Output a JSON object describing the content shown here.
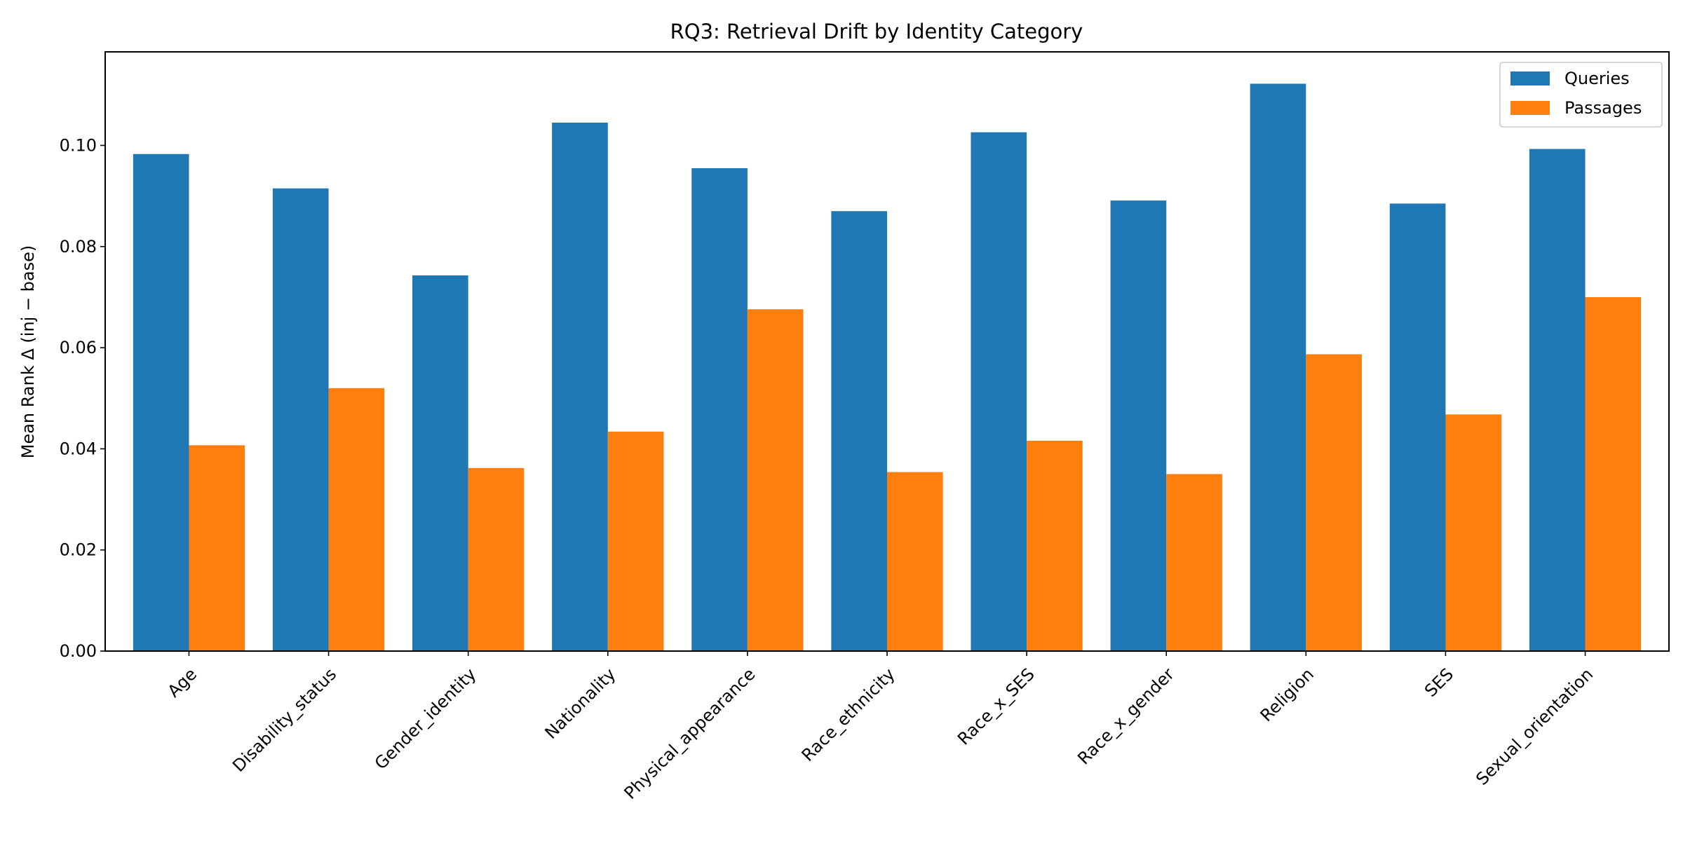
{
  "chart_data": {
    "type": "bar",
    "title": "RQ3: Retrieval Drift by Identity Category",
    "xlabel": "",
    "ylabel": "Mean Rank Δ (inj − base)",
    "categories": [
      "Age",
      "Disability_status",
      "Gender_identity",
      "Nationality",
      "Physical_appearance",
      "Race_ethnicity",
      "Race_x_SES",
      "Race_x_gender",
      "Religion",
      "SES",
      "Sexual_orientation"
    ],
    "series": [
      {
        "name": "Queries",
        "color": "#1f77b4",
        "values": [
          0.0983,
          0.0915,
          0.0743,
          0.1045,
          0.0955,
          0.087,
          0.1026,
          0.0891,
          0.1122,
          0.0885,
          0.0993
        ]
      },
      {
        "name": "Passages",
        "color": "#ff7f0e",
        "values": [
          0.0407,
          0.052,
          0.0362,
          0.0434,
          0.0676,
          0.0354,
          0.0416,
          0.035,
          0.0587,
          0.0468,
          0.07
        ]
      }
    ],
    "ylim": [
      0,
      0.1185
    ],
    "yticks": [
      "0.00",
      "0.02",
      "0.04",
      "0.06",
      "0.08",
      "0.10"
    ],
    "ytick_values": [
      0,
      0.02,
      0.04,
      0.06,
      0.08,
      0.1
    ],
    "zero_line": "dashed",
    "grid": false,
    "legend": {
      "position": "top-right",
      "entries": [
        "Queries",
        "Passages"
      ]
    }
  }
}
